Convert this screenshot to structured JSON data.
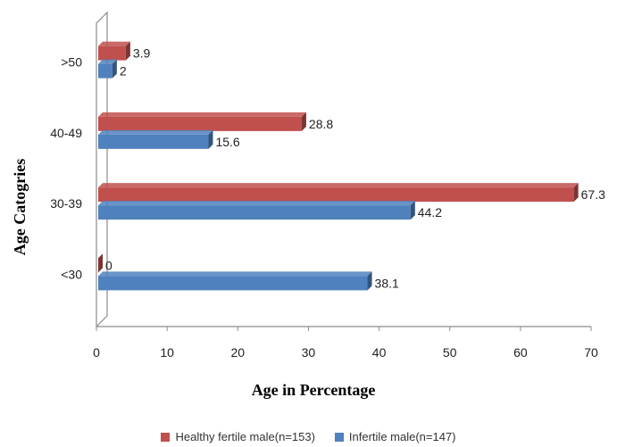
{
  "chart_data": {
    "type": "bar",
    "orientation": "horizontal",
    "categories": [
      "<30",
      "30-39",
      "40-49",
      ">50"
    ],
    "series": [
      {
        "name": "Healthy fertile male(n=153)",
        "values": [
          0,
          67.3,
          28.8,
          3.9
        ],
        "labels": [
          "0",
          "67.3",
          "28.8",
          "3.9"
        ],
        "color": "#c0504d"
      },
      {
        "name": "Infertile male(n=147)",
        "values": [
          38.1,
          44.2,
          15.6,
          2
        ],
        "labels": [
          "38.1",
          "44.2",
          "15.6",
          "2"
        ],
        "color": "#4f81bd"
      }
    ],
    "xlabel": "Age in Percentage",
    "ylabel": "Age Catogries",
    "xlim": [
      0,
      70
    ],
    "xticks": [
      "0",
      "10",
      "20",
      "30",
      "40",
      "50",
      "60",
      "70"
    ],
    "grid": false,
    "legend_position": "bottom",
    "style": "3d"
  }
}
